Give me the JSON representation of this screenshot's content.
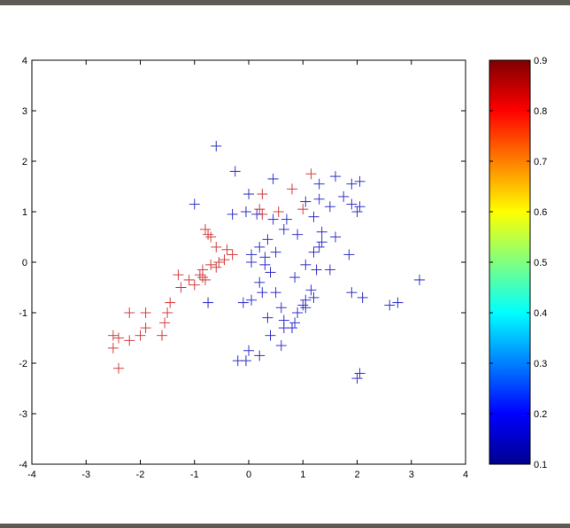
{
  "chart_data": {
    "type": "scatter",
    "title": "",
    "xlabel": "",
    "ylabel": "",
    "xlim": [
      -4,
      4
    ],
    "ylim": [
      -4,
      4
    ],
    "x_ticks": [
      "-4",
      "-3",
      "-2",
      "-1",
      "0",
      "1",
      "2",
      "3",
      "4"
    ],
    "y_ticks": [
      "-4",
      "-3",
      "-2",
      "-1",
      "0",
      "1",
      "2",
      "3",
      "4"
    ],
    "grid": false,
    "marker": "+",
    "series": [
      {
        "color": "#d43c3c",
        "points": [
          [
            1.15,
            1.75
          ],
          [
            0.8,
            1.45
          ],
          [
            0.25,
            1.35
          ],
          [
            1.0,
            1.05
          ],
          [
            0.2,
            1.05
          ],
          [
            0.55,
            1.0
          ],
          [
            0.25,
            0.95
          ],
          [
            -0.8,
            0.65
          ],
          [
            -0.75,
            0.55
          ],
          [
            -0.7,
            0.5
          ],
          [
            -0.6,
            0.3
          ],
          [
            -0.4,
            0.25
          ],
          [
            -0.3,
            0.15
          ],
          [
            -0.45,
            0.05
          ],
          [
            -0.55,
            0.0
          ],
          [
            -0.7,
            -0.05
          ],
          [
            -0.6,
            -0.1
          ],
          [
            -0.85,
            -0.15
          ],
          [
            -0.9,
            -0.25
          ],
          [
            -0.85,
            -0.3
          ],
          [
            -1.3,
            -0.25
          ],
          [
            -1.1,
            -0.35
          ],
          [
            -0.8,
            -0.35
          ],
          [
            -1.25,
            -0.5
          ],
          [
            -1.0,
            -0.45
          ],
          [
            -1.45,
            -0.8
          ],
          [
            -1.5,
            -1.0
          ],
          [
            -1.55,
            -1.2
          ],
          [
            -1.9,
            -1.0
          ],
          [
            -1.9,
            -1.3
          ],
          [
            -2.2,
            -1.0
          ],
          [
            -1.6,
            -1.45
          ],
          [
            -2.0,
            -1.45
          ],
          [
            -2.2,
            -1.55
          ],
          [
            -2.4,
            -1.5
          ],
          [
            -2.5,
            -1.45
          ],
          [
            -2.5,
            -1.7
          ],
          [
            -2.4,
            -2.1
          ]
        ]
      },
      {
        "color": "#3030c8",
        "points": [
          [
            -0.6,
            2.3
          ],
          [
            -0.25,
            1.8
          ],
          [
            -1.0,
            1.15
          ],
          [
            0.45,
            1.65
          ],
          [
            1.6,
            1.7
          ],
          [
            1.3,
            1.55
          ],
          [
            1.9,
            1.55
          ],
          [
            2.05,
            1.6
          ],
          [
            1.75,
            1.3
          ],
          [
            1.3,
            1.25
          ],
          [
            0.0,
            1.35
          ],
          [
            -0.05,
            1.0
          ],
          [
            0.15,
            0.95
          ],
          [
            -0.3,
            0.95
          ],
          [
            1.05,
            1.2
          ],
          [
            1.5,
            1.1
          ],
          [
            1.9,
            1.15
          ],
          [
            2.05,
            1.1
          ],
          [
            2.0,
            1.0
          ],
          [
            0.45,
            0.85
          ],
          [
            0.7,
            0.85
          ],
          [
            1.2,
            0.9
          ],
          [
            1.35,
            0.6
          ],
          [
            1.6,
            0.5
          ],
          [
            1.35,
            0.4
          ],
          [
            1.3,
            0.3
          ],
          [
            1.2,
            0.2
          ],
          [
            0.9,
            0.55
          ],
          [
            0.65,
            0.65
          ],
          [
            0.35,
            0.45
          ],
          [
            0.2,
            0.3
          ],
          [
            0.3,
            0.1
          ],
          [
            0.05,
            0.15
          ],
          [
            0.05,
            0.0
          ],
          [
            0.5,
            0.2
          ],
          [
            1.85,
            0.15
          ],
          [
            1.25,
            -0.15
          ],
          [
            1.5,
            -0.15
          ],
          [
            1.05,
            -0.05
          ],
          [
            0.3,
            -0.05
          ],
          [
            0.4,
            -0.2
          ],
          [
            0.2,
            -0.4
          ],
          [
            0.85,
            -0.3
          ],
          [
            1.15,
            -0.55
          ],
          [
            1.2,
            -0.7
          ],
          [
            1.05,
            -0.75
          ],
          [
            1.0,
            -0.85
          ],
          [
            0.25,
            -0.6
          ],
          [
            0.5,
            -0.6
          ],
          [
            0.05,
            -0.75
          ],
          [
            -0.1,
            -0.8
          ],
          [
            0.6,
            -0.9
          ],
          [
            0.9,
            -1.0
          ],
          [
            0.35,
            -1.1
          ],
          [
            0.65,
            -1.15
          ],
          [
            0.65,
            -1.3
          ],
          [
            0.8,
            -1.3
          ],
          [
            0.85,
            -1.2
          ],
          [
            1.05,
            -0.9
          ],
          [
            0.4,
            -1.45
          ],
          [
            0.0,
            -1.75
          ],
          [
            0.2,
            -1.85
          ],
          [
            0.6,
            -1.65
          ],
          [
            -0.05,
            -1.95
          ],
          [
            -0.2,
            -1.95
          ],
          [
            1.9,
            -0.6
          ],
          [
            2.1,
            -0.7
          ],
          [
            2.6,
            -0.85
          ],
          [
            2.75,
            -0.8
          ],
          [
            3.15,
            -0.35
          ],
          [
            2.05,
            -2.2
          ],
          [
            2.0,
            -2.3
          ],
          [
            -0.75,
            -0.8
          ]
        ]
      }
    ],
    "contour_levels": [
      0.3,
      0.4,
      0.5,
      0.6,
      0.7,
      0.8
    ],
    "colorbar": {
      "ticks": [
        "0.1",
        "0.2",
        "0.3",
        "0.4",
        "0.5",
        "0.6",
        "0.7",
        "0.8",
        "0.9"
      ],
      "min": 0.1,
      "max": 0.9,
      "colormap": "jet"
    }
  }
}
